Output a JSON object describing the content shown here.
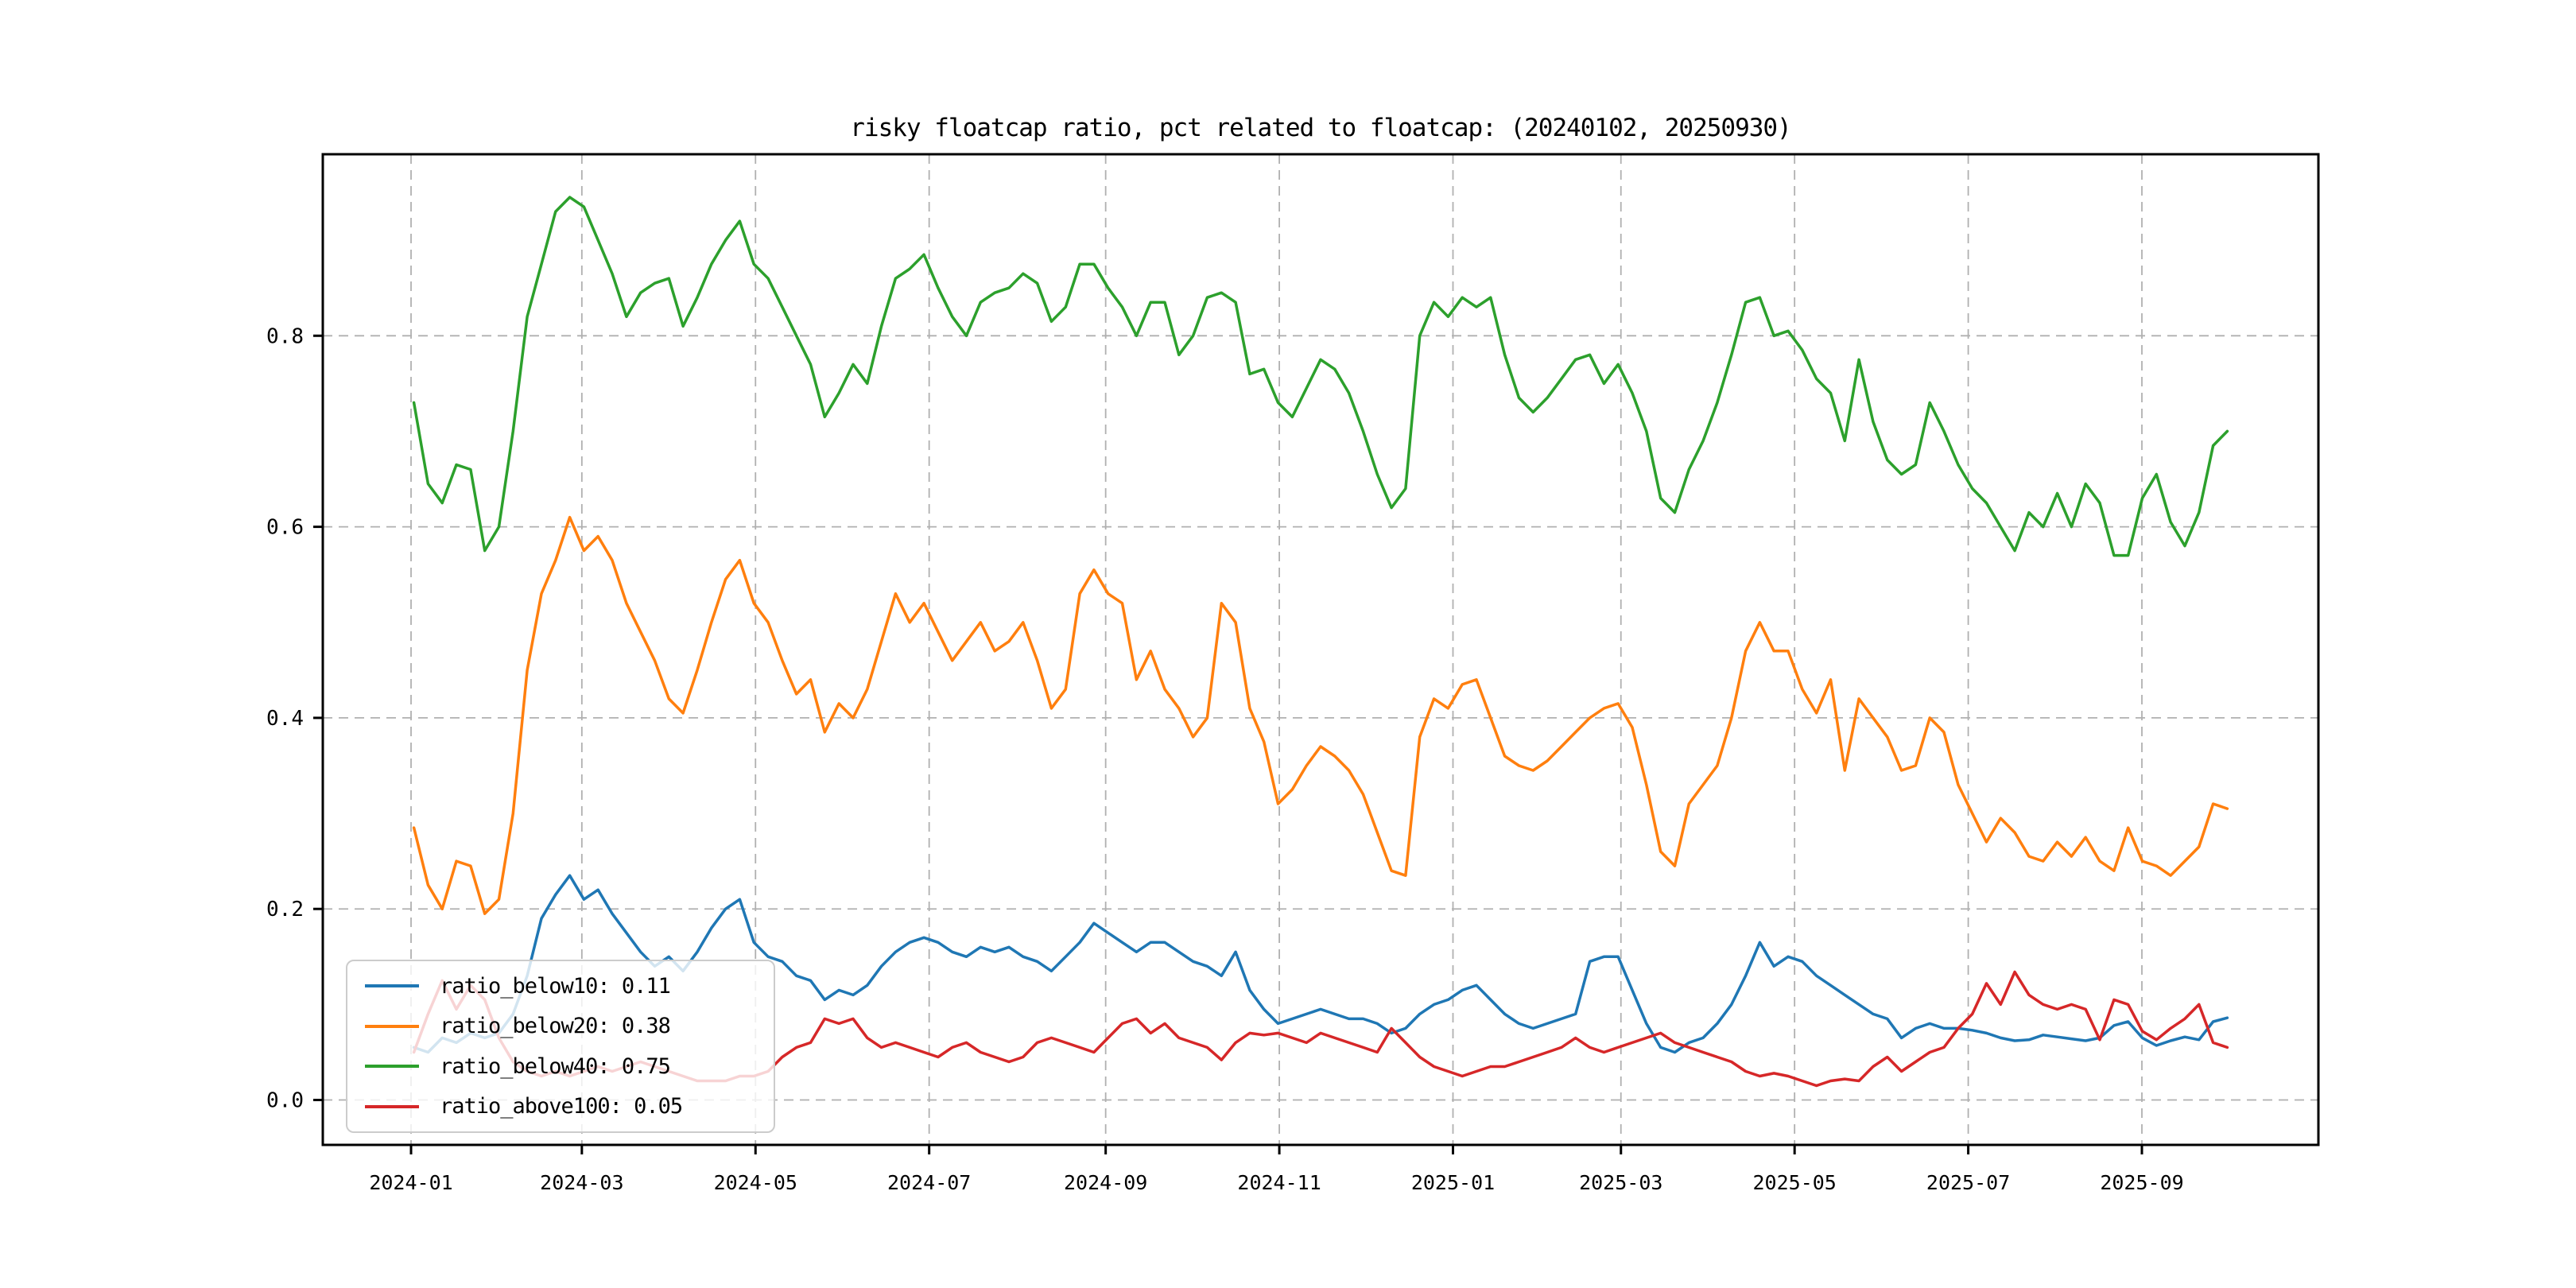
{
  "chart_data": {
    "type": "line",
    "title": "risky floatcap ratio, pct related to floatcap: (20240102, 20250930)",
    "xlabel": "",
    "ylabel": "",
    "grid": "dashed",
    "legend_position": "lower left",
    "x_start_date": "2024-01-02",
    "x_end_date": "2025-09-30",
    "x_span_days": 637,
    "xlim_days": [
      -32,
      669
    ],
    "ylim": [
      -0.047,
      0.99
    ],
    "y_ticks": [
      0.0,
      0.2,
      0.4,
      0.6,
      0.8
    ],
    "y_tick_labels": [
      "0.0",
      "0.2",
      "0.4",
      "0.6",
      "0.8"
    ],
    "x_tick_day_offsets": [
      -1,
      59,
      120,
      181,
      243,
      304,
      365,
      424,
      485,
      546,
      607
    ],
    "x_tick_labels": [
      "2024-01",
      "2024-03",
      "2024-05",
      "2024-07",
      "2024-09",
      "2024-11",
      "2025-01",
      "2025-03",
      "2025-05",
      "2025-07",
      "2025-09"
    ],
    "num_points": 129,
    "series": [
      {
        "name": "ratio_below10",
        "label": "ratio_below10: 0.11",
        "legend_value": 0.11,
        "color": "#1f77b4",
        "values": [
          0.055,
          0.05,
          0.065,
          0.06,
          0.07,
          0.065,
          0.07,
          0.09,
          0.13,
          0.19,
          0.215,
          0.235,
          0.21,
          0.22,
          0.195,
          0.175,
          0.155,
          0.14,
          0.15,
          0.135,
          0.155,
          0.18,
          0.2,
          0.21,
          0.165,
          0.15,
          0.145,
          0.13,
          0.125,
          0.105,
          0.115,
          0.11,
          0.12,
          0.14,
          0.155,
          0.165,
          0.17,
          0.165,
          0.155,
          0.15,
          0.16,
          0.155,
          0.16,
          0.15,
          0.145,
          0.135,
          0.15,
          0.165,
          0.185,
          0.175,
          0.165,
          0.155,
          0.165,
          0.165,
          0.155,
          0.145,
          0.14,
          0.13,
          0.155,
          0.115,
          0.095,
          0.08,
          0.085,
          0.09,
          0.095,
          0.09,
          0.085,
          0.085,
          0.08,
          0.07,
          0.075,
          0.09,
          0.1,
          0.105,
          0.115,
          0.12,
          0.105,
          0.09,
          0.08,
          0.075,
          0.08,
          0.085,
          0.09,
          0.145,
          0.15,
          0.15,
          0.115,
          0.08,
          0.055,
          0.05,
          0.06,
          0.065,
          0.08,
          0.1,
          0.13,
          0.165,
          0.14,
          0.15,
          0.145,
          0.13,
          0.12,
          0.11,
          0.1,
          0.09,
          0.085,
          0.065,
          0.075,
          0.08,
          0.075,
          0.075,
          0.073,
          0.07,
          0.065,
          0.062,
          0.063,
          0.068,
          0.066,
          0.064,
          0.062,
          0.065,
          0.078,
          0.082,
          0.065,
          0.057,
          0.062,
          0.066,
          0.063,
          0.082,
          0.086
        ]
      },
      {
        "name": "ratio_below20",
        "label": "ratio_below20: 0.38",
        "legend_value": 0.38,
        "color": "#ff7f0e",
        "values": [
          0.285,
          0.225,
          0.2,
          0.25,
          0.245,
          0.195,
          0.21,
          0.3,
          0.45,
          0.53,
          0.565,
          0.61,
          0.575,
          0.59,
          0.565,
          0.52,
          0.49,
          0.46,
          0.42,
          0.405,
          0.45,
          0.5,
          0.545,
          0.565,
          0.52,
          0.5,
          0.46,
          0.425,
          0.44,
          0.385,
          0.415,
          0.4,
          0.43,
          0.48,
          0.53,
          0.5,
          0.52,
          0.49,
          0.46,
          0.48,
          0.5,
          0.47,
          0.48,
          0.5,
          0.46,
          0.41,
          0.43,
          0.53,
          0.555,
          0.53,
          0.52,
          0.44,
          0.47,
          0.43,
          0.41,
          0.38,
          0.4,
          0.52,
          0.5,
          0.41,
          0.375,
          0.31,
          0.325,
          0.35,
          0.37,
          0.36,
          0.345,
          0.32,
          0.28,
          0.24,
          0.235,
          0.38,
          0.42,
          0.41,
          0.435,
          0.44,
          0.4,
          0.36,
          0.35,
          0.345,
          0.355,
          0.37,
          0.385,
          0.4,
          0.41,
          0.415,
          0.39,
          0.33,
          0.26,
          0.245,
          0.31,
          0.33,
          0.35,
          0.4,
          0.47,
          0.5,
          0.47,
          0.47,
          0.43,
          0.405,
          0.44,
          0.345,
          0.42,
          0.4,
          0.38,
          0.345,
          0.35,
          0.4,
          0.385,
          0.33,
          0.3,
          0.27,
          0.295,
          0.28,
          0.255,
          0.25,
          0.27,
          0.255,
          0.275,
          0.25,
          0.24,
          0.285,
          0.25,
          0.245,
          0.235,
          0.25,
          0.265,
          0.31,
          0.305
        ]
      },
      {
        "name": "ratio_below40",
        "label": "ratio_below40: 0.75",
        "legend_value": 0.75,
        "color": "#2ca02c",
        "values": [
          0.73,
          0.645,
          0.625,
          0.665,
          0.66,
          0.575,
          0.6,
          0.7,
          0.82,
          0.875,
          0.93,
          0.945,
          0.935,
          0.9,
          0.865,
          0.82,
          0.845,
          0.855,
          0.86,
          0.81,
          0.84,
          0.875,
          0.9,
          0.92,
          0.875,
          0.86,
          0.83,
          0.8,
          0.77,
          0.715,
          0.74,
          0.77,
          0.75,
          0.81,
          0.86,
          0.87,
          0.885,
          0.85,
          0.82,
          0.8,
          0.835,
          0.845,
          0.85,
          0.865,
          0.855,
          0.815,
          0.83,
          0.875,
          0.875,
          0.85,
          0.83,
          0.8,
          0.835,
          0.835,
          0.78,
          0.8,
          0.84,
          0.845,
          0.835,
          0.76,
          0.765,
          0.73,
          0.715,
          0.745,
          0.775,
          0.765,
          0.74,
          0.7,
          0.655,
          0.62,
          0.64,
          0.8,
          0.835,
          0.82,
          0.84,
          0.83,
          0.84,
          0.78,
          0.735,
          0.72,
          0.735,
          0.755,
          0.775,
          0.78,
          0.75,
          0.77,
          0.74,
          0.7,
          0.63,
          0.615,
          0.66,
          0.69,
          0.73,
          0.78,
          0.835,
          0.84,
          0.8,
          0.805,
          0.785,
          0.755,
          0.74,
          0.69,
          0.775,
          0.71,
          0.67,
          0.655,
          0.665,
          0.73,
          0.7,
          0.665,
          0.64,
          0.625,
          0.6,
          0.575,
          0.615,
          0.6,
          0.635,
          0.6,
          0.645,
          0.625,
          0.57,
          0.57,
          0.63,
          0.655,
          0.605,
          0.58,
          0.615,
          0.685,
          0.7
        ]
      },
      {
        "name": "ratio_above100",
        "label": "ratio_above100: 0.05",
        "legend_value": 0.05,
        "color": "#d62728",
        "values": [
          0.05,
          0.09,
          0.125,
          0.095,
          0.12,
          0.105,
          0.065,
          0.04,
          0.03,
          0.025,
          0.03,
          0.025,
          0.03,
          0.035,
          0.03,
          0.035,
          0.04,
          0.035,
          0.03,
          0.025,
          0.02,
          0.02,
          0.02,
          0.025,
          0.025,
          0.03,
          0.045,
          0.055,
          0.06,
          0.085,
          0.08,
          0.085,
          0.065,
          0.055,
          0.06,
          0.055,
          0.05,
          0.045,
          0.055,
          0.06,
          0.05,
          0.045,
          0.04,
          0.045,
          0.06,
          0.065,
          0.06,
          0.055,
          0.05,
          0.065,
          0.08,
          0.085,
          0.07,
          0.08,
          0.065,
          0.06,
          0.055,
          0.042,
          0.06,
          0.07,
          0.068,
          0.07,
          0.065,
          0.06,
          0.07,
          0.065,
          0.06,
          0.055,
          0.05,
          0.075,
          0.06,
          0.045,
          0.035,
          0.03,
          0.025,
          0.03,
          0.035,
          0.035,
          0.04,
          0.045,
          0.05,
          0.055,
          0.065,
          0.055,
          0.05,
          0.055,
          0.06,
          0.065,
          0.07,
          0.06,
          0.055,
          0.05,
          0.045,
          0.04,
          0.03,
          0.025,
          0.028,
          0.025,
          0.02,
          0.015,
          0.02,
          0.022,
          0.02,
          0.035,
          0.045,
          0.03,
          0.04,
          0.05,
          0.055,
          0.075,
          0.09,
          0.122,
          0.1,
          0.134,
          0.11,
          0.1,
          0.095,
          0.1,
          0.095,
          0.063,
          0.105,
          0.1,
          0.072,
          0.063,
          0.075,
          0.085,
          0.1,
          0.06,
          0.055
        ]
      }
    ]
  },
  "style": {
    "grid_color": "#b0b0b0",
    "spine_color": "#000000",
    "background": "#ffffff",
    "legend_border": "#cccccc"
  }
}
